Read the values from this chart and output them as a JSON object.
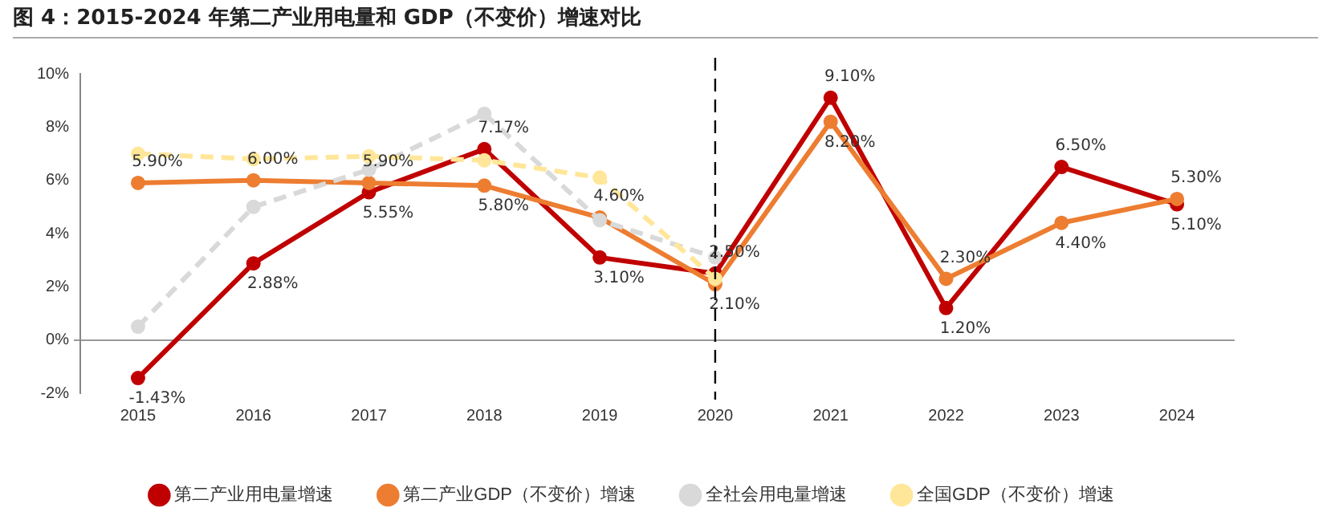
{
  "chart_data": {
    "type": "line",
    "title": "图 4：2015-2024 年第二产业用电量和 GDP（不变价）增速对比",
    "categories": [
      "2015",
      "2016",
      "2017",
      "2018",
      "2019",
      "2020",
      "2021",
      "2022",
      "2023",
      "2024"
    ],
    "series": [
      {
        "name": "第二产业用电量增速",
        "color": "#c00000",
        "values": [
          -1.43,
          2.88,
          5.55,
          7.17,
          3.1,
          2.5,
          9.1,
          1.2,
          6.5,
          5.1
        ],
        "value_labels": [
          "-1.43%",
          "2.88%",
          "5.55%",
          "7.17%",
          "3.10%",
          "2.50%",
          "9.10%",
          "1.20%",
          "6.50%",
          "5.10%"
        ]
      },
      {
        "name": "第二产业GDP（不变价）增速",
        "color": "#ed7d31",
        "values": [
          5.9,
          6.0,
          5.9,
          5.8,
          4.6,
          2.1,
          8.2,
          2.3,
          4.4,
          5.3
        ],
        "value_labels": [
          "5.90%",
          "6.00%",
          "5.90%",
          "5.80%",
          "4.60%",
          "2.10%",
          "8.20%",
          "2.30%",
          "4.40%",
          "5.30%"
        ]
      },
      {
        "name": "全社会用电量增速",
        "color": "#d9d9d9",
        "line_style": "dashed",
        "values": [
          0.5,
          5.0,
          6.4,
          8.5,
          4.5,
          3.1,
          null,
          null,
          null,
          null
        ]
      },
      {
        "name": "全国GDP（不变价）增速",
        "color": "#ffe699",
        "line_style": "dashed",
        "values": [
          7.0,
          6.8,
          6.9,
          6.75,
          6.1,
          2.3,
          null,
          null,
          null,
          null
        ]
      }
    ],
    "ylim": [
      -2,
      10
    ],
    "yticks": [
      {
        "value": -2,
        "label": "-2%"
      },
      {
        "value": 0,
        "label": "0%"
      },
      {
        "value": 2,
        "label": "2%"
      },
      {
        "value": 4,
        "label": "4%"
      },
      {
        "value": 6,
        "label": "6%"
      },
      {
        "value": 8,
        "label": "8%"
      },
      {
        "value": 10,
        "label": "10%"
      }
    ],
    "ref_lines": [
      {
        "axis": "x",
        "value": "2020",
        "color": "#000000",
        "line_style": "dashed"
      }
    ],
    "marker": "circle",
    "line_style": "solid",
    "legend": "bottom",
    "grid": false
  }
}
